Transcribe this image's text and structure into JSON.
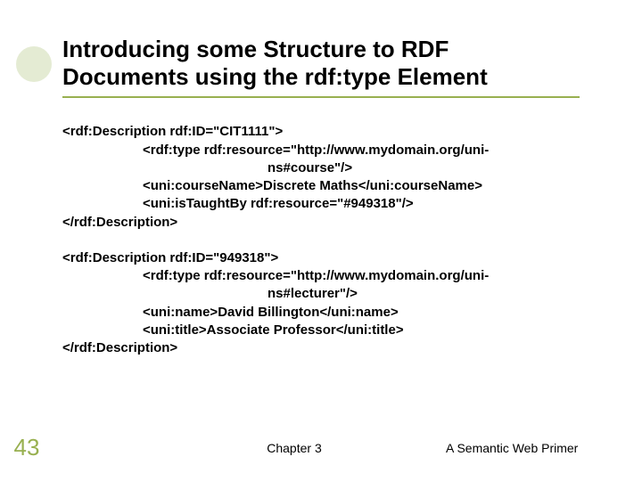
{
  "title_line1": "Introducing some Structure to RDF",
  "title_line2": "Documents using the rdf:type Element",
  "block1": {
    "l1": "<rdf:Description rdf:ID=\"CIT1111\">",
    "l2": "<rdf:type rdf:resource=\"http://www.mydomain.org/uni-",
    "l3": "ns#course\"/>",
    "l4": "<uni:courseName>Discrete Maths</uni:courseName>",
    "l5": "<uni:isTaughtBy rdf:resource=\"#949318\"/>",
    "l6": "</rdf:Description>"
  },
  "block2": {
    "l1": "<rdf:Description rdf:ID=\"949318\">",
    "l2": "<rdf:type rdf:resource=\"http://www.mydomain.org/uni-",
    "l3": "ns#lecturer\"/>",
    "l4": "<uni:name>David Billington</uni:name>",
    "l5": "<uni:title>Associate Professor</uni:title>",
    "l6": "</rdf:Description>"
  },
  "footer": {
    "page": "43",
    "center": "Chapter 3",
    "right": "A Semantic Web Primer"
  },
  "colors": {
    "accent": "#98b050",
    "dot": "#c9d8a8",
    "text": "#000000",
    "bg": "#ffffff"
  }
}
